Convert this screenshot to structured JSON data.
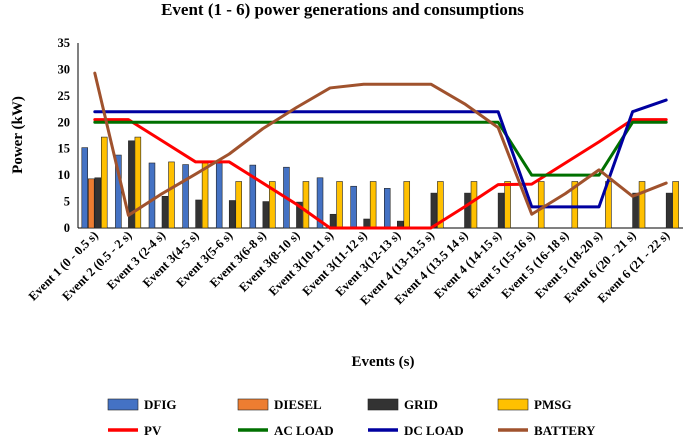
{
  "chart_data": {
    "type": "bar",
    "title": "Event (1 - 6) power generations and consumptions",
    "xlabel": "Events (s)",
    "ylabel": "Power (kW)",
    "ylim": [
      0,
      35
    ],
    "yticks": [
      "0",
      "5",
      "10",
      "15",
      "20",
      "25",
      "30",
      "35"
    ],
    "categories": [
      "Event 1 (0 - 0.5 s)",
      "Event 2 (0.5 - 2 s)",
      "Event 3 (2-4 s)",
      "Event 3(4-5 s)",
      "Event 3(5-6 s)",
      "Event 3(6-8 s)",
      "Event 3(8-10 s)",
      "Event 3(10-11 s)",
      "Event 3(11-12 s)",
      "Event 3(12-13 s)",
      "Event 4 (13-13.5 s)",
      "Event 4 (13.5 14 s)",
      "Event 4 (14-15 s)",
      "Event 5 (15-16 s)",
      "Event 5 (16-18 s)",
      "Event 5 (18-20 s)",
      "Event 6 (20 - 21 s)",
      "Event 6 (21 - 22 s)"
    ],
    "bar_series": [
      {
        "name": "DFIG",
        "color": "#4472C4",
        "values": [
          15.2,
          13.8,
          12.3,
          12.0,
          12.3,
          11.9,
          11.5,
          9.5,
          7.9,
          7.5,
          0,
          0,
          0,
          0,
          0,
          0,
          0,
          0
        ]
      },
      {
        "name": "DIESEL",
        "color": "#ED7D31",
        "values": [
          9.3,
          0,
          0,
          0,
          0,
          0,
          0,
          0,
          0,
          0,
          0,
          0,
          0,
          0,
          0,
          0,
          0,
          0
        ]
      },
      {
        "name": "GRID",
        "color": "#333333",
        "values": [
          9.5,
          16.5,
          6.0,
          5.3,
          5.2,
          5.0,
          4.9,
          2.6,
          1.7,
          1.3,
          6.6,
          6.6,
          6.6,
          0,
          0,
          0,
          6.6,
          6.6
        ]
      },
      {
        "name": "PMSG",
        "color": "#FFC000",
        "values": [
          17.2,
          17.2,
          12.5,
          12.3,
          8.8,
          8.8,
          8.8,
          8.8,
          8.8,
          8.8,
          8.8,
          8.8,
          8.8,
          8.8,
          8.8,
          8.8,
          8.8,
          8.8
        ]
      }
    ],
    "line_series": [
      {
        "name": "PV",
        "color": "#FF0000",
        "values": [
          20.5,
          20.5,
          16.5,
          12.5,
          12.5,
          8.5,
          4.5,
          0,
          0,
          0,
          0,
          4,
          8.2,
          8.3,
          12.3,
          16.3,
          20.5,
          20.5
        ]
      },
      {
        "name": "AC LOAD",
        "color": "#007000",
        "values": [
          20,
          20,
          20,
          20,
          20,
          20,
          20,
          20,
          20,
          20,
          20,
          20,
          20,
          10,
          10,
          10,
          20,
          20
        ]
      },
      {
        "name": "DC LOAD",
        "color": "#0000A0",
        "values": [
          22,
          22,
          22,
          22,
          22,
          22,
          22,
          22,
          22,
          22,
          22,
          22,
          22,
          4,
          4,
          4,
          22,
          24.2
        ]
      },
      {
        "name": "BATTERY",
        "color": "#A0522D",
        "values": [
          29.3,
          2.4,
          6.5,
          10.2,
          14.0,
          18.8,
          22.8,
          26.5,
          27.2,
          27.2,
          27.2,
          23.5,
          19.0,
          2.6,
          6.5,
          11.0,
          6.0,
          8.5
        ]
      }
    ],
    "legend": [
      {
        "name": "DFIG",
        "kind": "bar",
        "color": "#4472C4"
      },
      {
        "name": "DIESEL",
        "kind": "bar",
        "color": "#ED7D31"
      },
      {
        "name": "GRID",
        "kind": "bar",
        "color": "#333333"
      },
      {
        "name": "PMSG",
        "kind": "bar",
        "color": "#FFC000"
      },
      {
        "name": "PV",
        "kind": "line",
        "color": "#FF0000"
      },
      {
        "name": "AC LOAD",
        "kind": "line",
        "color": "#007000"
      },
      {
        "name": "DC LOAD",
        "kind": "line",
        "color": "#0000A0"
      },
      {
        "name": "BATTERY",
        "kind": "line",
        "color": "#A0522D"
      }
    ],
    "legend_position": "bottom",
    "grid": false
  }
}
